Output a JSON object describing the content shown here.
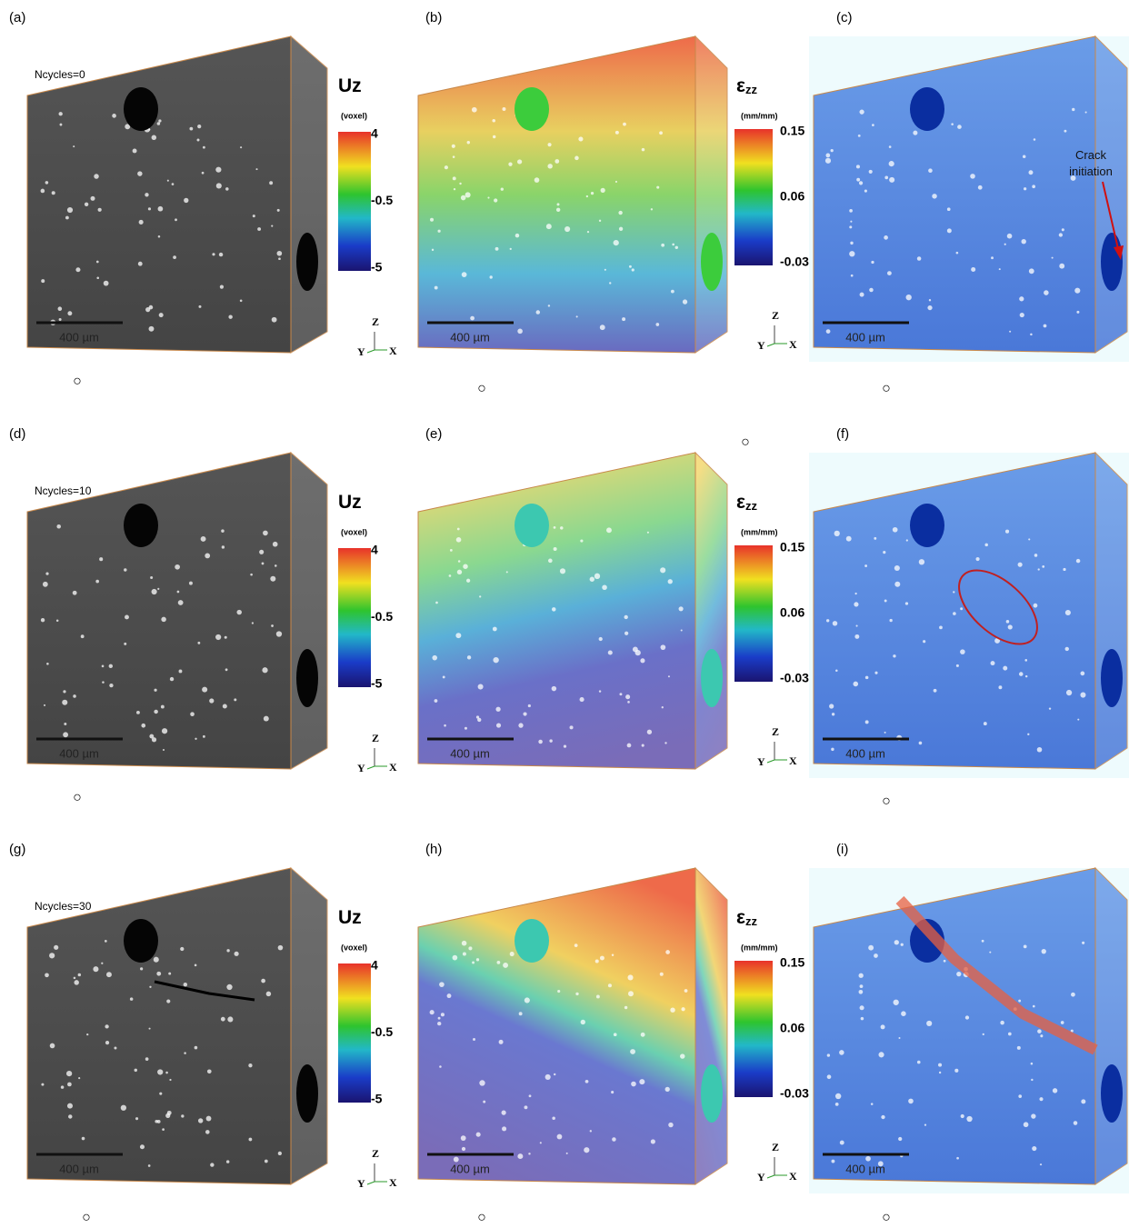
{
  "rows": [
    {
      "row_label": "Ncycles=0",
      "panels": [
        "(a)",
        "(b)",
        "(c)"
      ],
      "scale_bars": [
        "400 µm",
        "400 µm",
        "400 µm"
      ],
      "uz_colorbar": {
        "title": "Uz",
        "unit": "(voxel)",
        "ticks": [
          "4",
          "-0.5",
          "-5"
        ]
      },
      "ezz_colorbar": {
        "title": "ε",
        "subscript": "zz",
        "unit": "(mm/mm)",
        "ticks": [
          "0.15",
          "0.06",
          "-0.03"
        ]
      },
      "triads": [
        {
          "z": "Z",
          "y": "Y",
          "x": "X"
        },
        {
          "z": "Z",
          "y": "Y",
          "x": "X"
        }
      ],
      "markers": [
        "○",
        "○",
        "○",
        "○"
      ]
    },
    {
      "row_label": "Ncycles=10",
      "panels": [
        "(d)",
        "(e)",
        "(f)"
      ],
      "scale_bars": [
        "400 µm",
        "400 µm",
        "400 µm"
      ],
      "uz_colorbar": {
        "title": "Uz",
        "unit": "(voxel)",
        "ticks": [
          "4",
          "-0.5",
          "-5"
        ]
      },
      "ezz_colorbar": {
        "title": "ε",
        "subscript": "zz",
        "unit": "(mm/mm)",
        "ticks": [
          "0.15",
          "0.06",
          "-0.03"
        ]
      },
      "triads": [
        {
          "z": "Z",
          "y": "Y",
          "x": "X"
        },
        {
          "z": "Z",
          "y": "Y",
          "x": "X"
        }
      ],
      "markers": [
        "○",
        "○"
      ]
    },
    {
      "row_label": "Ncycles=30",
      "panels": [
        "(g)",
        "(h)",
        "(i)"
      ],
      "scale_bars": [
        "400 µm",
        "400 µm",
        "400 µm"
      ],
      "uz_colorbar": {
        "title": "Uz",
        "unit": "(voxel)",
        "ticks": [
          "4",
          "-0.5",
          "-5"
        ]
      },
      "ezz_colorbar": {
        "title": "ε",
        "subscript": "zz",
        "unit": "(mm/mm)",
        "ticks": [
          "0.15",
          "0.06",
          "-0.03"
        ]
      },
      "triads": [
        {
          "z": "Z",
          "y": "Y",
          "x": "X"
        },
        {
          "z": "Z",
          "y": "Y",
          "x": "X"
        }
      ],
      "markers": [
        "○",
        "○",
        "○"
      ]
    }
  ],
  "crack_annotation": "Crack initiation"
}
